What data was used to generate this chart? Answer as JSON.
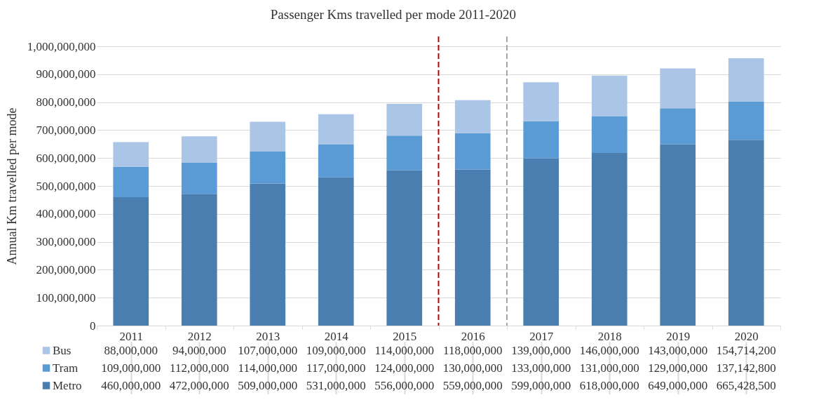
{
  "chart_data": {
    "type": "bar",
    "stacked": true,
    "title": "Passenger Kms travelled per mode 2011-2020",
    "ylabel": "Annual Km travelled per mode",
    "categories": [
      "2011",
      "2012",
      "2013",
      "2014",
      "2015",
      "2016",
      "2017",
      "2018",
      "2019",
      "2020"
    ],
    "series": [
      {
        "name": "Metro",
        "color": "#4a7eb1",
        "values": [
          460000000,
          472000000,
          509000000,
          531000000,
          556000000,
          559000000,
          599000000,
          618000000,
          649000000,
          665428500
        ],
        "value_labels": [
          "460,000,000",
          "472,000,000",
          "509,000,000",
          "531,000,000",
          "556,000,000",
          "559,000,000",
          "599,000,000",
          "618,000,000",
          "649,000,000",
          "665,428,500"
        ]
      },
      {
        "name": "Tram",
        "color": "#5b9bd5",
        "values": [
          109000000,
          112000000,
          114000000,
          117000000,
          124000000,
          130000000,
          133000000,
          131000000,
          129000000,
          137142800
        ],
        "value_labels": [
          "109,000,000",
          "112,000,000",
          "114,000,000",
          "117,000,000",
          "124,000,000",
          "130,000,000",
          "133,000,000",
          "131,000,000",
          "129,000,000",
          "137,142,800"
        ]
      },
      {
        "name": "Bus",
        "color": "#abc5e6",
        "values": [
          88000000,
          94000000,
          107000000,
          109000000,
          114000000,
          118000000,
          139000000,
          146000000,
          143000000,
          154714200
        ],
        "value_labels": [
          "88,000,000",
          "94,000,000",
          "107,000,000",
          "109,000,000",
          "114,000,000",
          "118,000,000",
          "139,000,000",
          "146,000,000",
          "143,000,000",
          "154,714,200"
        ]
      }
    ],
    "ylim": [
      0,
      1000000000
    ],
    "yticks": [
      0,
      {
        "value": 100000000,
        "label": "100,000,000"
      },
      {
        "value": 200000000,
        "label": "200,000,000"
      },
      {
        "value": 300000000,
        "label": "300,000,000"
      },
      {
        "value": 400000000,
        "label": "400,000,000"
      },
      {
        "value": 500000000,
        "label": "500,000,000"
      },
      {
        "value": 600000000,
        "label": "600,000,000"
      },
      {
        "value": 700000000,
        "label": "700,000,000"
      },
      {
        "value": 800000000,
        "label": "800,000,000"
      },
      {
        "value": 900000000,
        "label": "900,000,000"
      },
      {
        "value": 1000000000,
        "label": "1,000,000,000"
      }
    ],
    "grid": "y",
    "legend": "bottom",
    "ref_lines": [
      {
        "axis": "x",
        "value": "2016",
        "color": "#c00000",
        "line_style": "dashed"
      },
      {
        "axis": "x",
        "value": "2017",
        "color": "#a6a6a6",
        "line_style": "dashed"
      }
    ]
  }
}
